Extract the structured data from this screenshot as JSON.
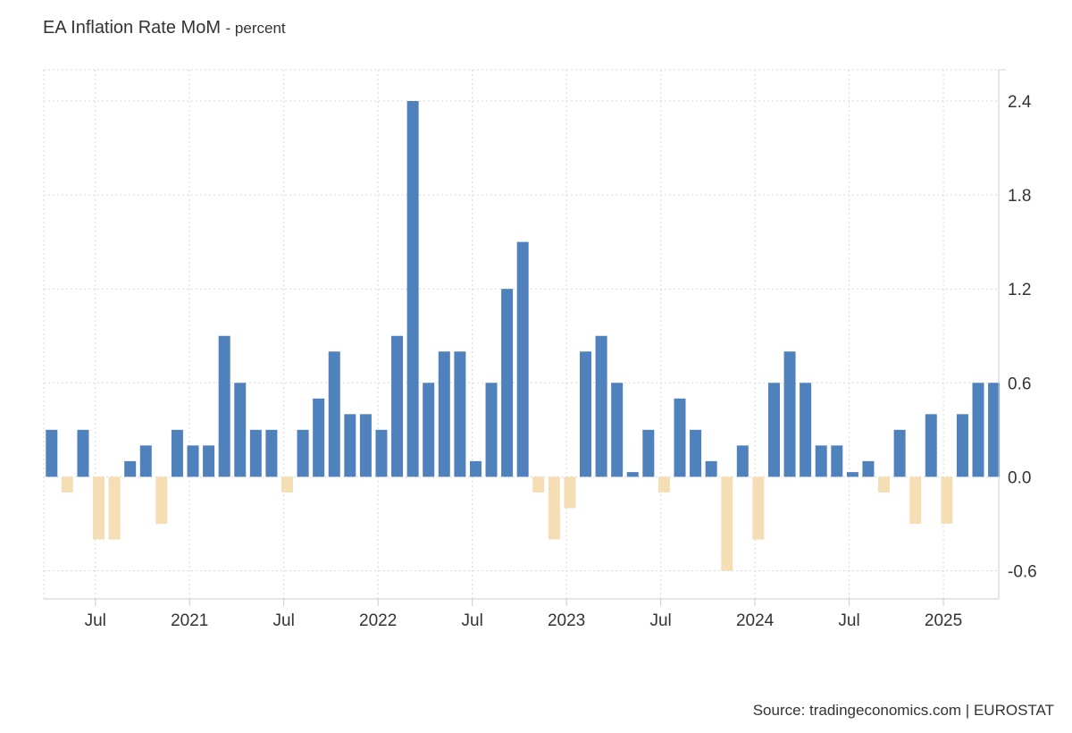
{
  "header": {
    "title": "EA Inflation Rate MoM",
    "subtitle": "- percent"
  },
  "footer": {
    "source": "Source: tradingeconomics.com | EUROSTAT"
  },
  "colors": {
    "positive": "#4f81bd",
    "negative": "#f5deb3",
    "grid": "#d9d9d9",
    "axis": "#cccccc"
  },
  "chart_data": {
    "type": "bar",
    "title": "EA Inflation Rate MoM",
    "subtitle": "percent",
    "xlabel": "",
    "ylabel": "",
    "ylim": [
      -0.78,
      2.6
    ],
    "yticks": [
      2.4,
      1.8,
      1.2,
      0.6,
      0.0,
      -0.6
    ],
    "ytick_labels": [
      "2.4",
      "1.8",
      "1.2",
      "0.6",
      "0.0",
      "-0.6"
    ],
    "y_axis_side": "right",
    "grid": true,
    "x_start": "2020-04",
    "xtick_labels": [
      {
        "label": "Jul",
        "period": "2020-07"
      },
      {
        "label": "2021",
        "period": "2021-01"
      },
      {
        "label": "Jul",
        "period": "2021-07"
      },
      {
        "label": "2022",
        "period": "2022-01"
      },
      {
        "label": "Jul",
        "period": "2022-07"
      },
      {
        "label": "2023",
        "period": "2023-01"
      },
      {
        "label": "Jul",
        "period": "2023-07"
      },
      {
        "label": "2024",
        "period": "2024-01"
      },
      {
        "label": "Jul",
        "period": "2024-07"
      },
      {
        "label": "2025",
        "period": "2025-01"
      }
    ],
    "categories": [
      "2020-04",
      "2020-05",
      "2020-06",
      "2020-07",
      "2020-08",
      "2020-09",
      "2020-10",
      "2020-11",
      "2020-12",
      "2021-01",
      "2021-02",
      "2021-03",
      "2021-04",
      "2021-05",
      "2021-06",
      "2021-07",
      "2021-08",
      "2021-09",
      "2021-10",
      "2021-11",
      "2021-12",
      "2022-01",
      "2022-02",
      "2022-03",
      "2022-04",
      "2022-05",
      "2022-06",
      "2022-07",
      "2022-08",
      "2022-09",
      "2022-10",
      "2022-11",
      "2022-12",
      "2023-01",
      "2023-02",
      "2023-03",
      "2023-04",
      "2023-05",
      "2023-06",
      "2023-07",
      "2023-08",
      "2023-09",
      "2023-10",
      "2023-11",
      "2023-12",
      "2024-01",
      "2024-02",
      "2024-03",
      "2024-04",
      "2024-05",
      "2024-06",
      "2024-07",
      "2024-08",
      "2024-09",
      "2024-10",
      "2024-11",
      "2024-12",
      "2025-01",
      "2025-02",
      "2025-03",
      "2025-04"
    ],
    "values": [
      0.3,
      -0.1,
      0.3,
      -0.4,
      -0.4,
      0.1,
      0.2,
      -0.3,
      0.3,
      0.2,
      0.2,
      0.9,
      0.6,
      0.3,
      0.3,
      -0.1,
      0.3,
      0.5,
      0.8,
      0.4,
      0.4,
      0.3,
      0.9,
      2.4,
      0.6,
      0.8,
      0.8,
      0.1,
      0.6,
      1.2,
      1.5,
      -0.1,
      -0.4,
      -0.2,
      0.8,
      0.9,
      0.6,
      0.03,
      0.3,
      -0.1,
      0.5,
      0.3,
      0.1,
      -0.6,
      0.2,
      -0.4,
      0.6,
      0.8,
      0.6,
      0.2,
      0.2,
      0.03,
      0.1,
      -0.1,
      0.3,
      -0.3,
      0.4,
      -0.3,
      0.4,
      0.6,
      0.6
    ]
  }
}
